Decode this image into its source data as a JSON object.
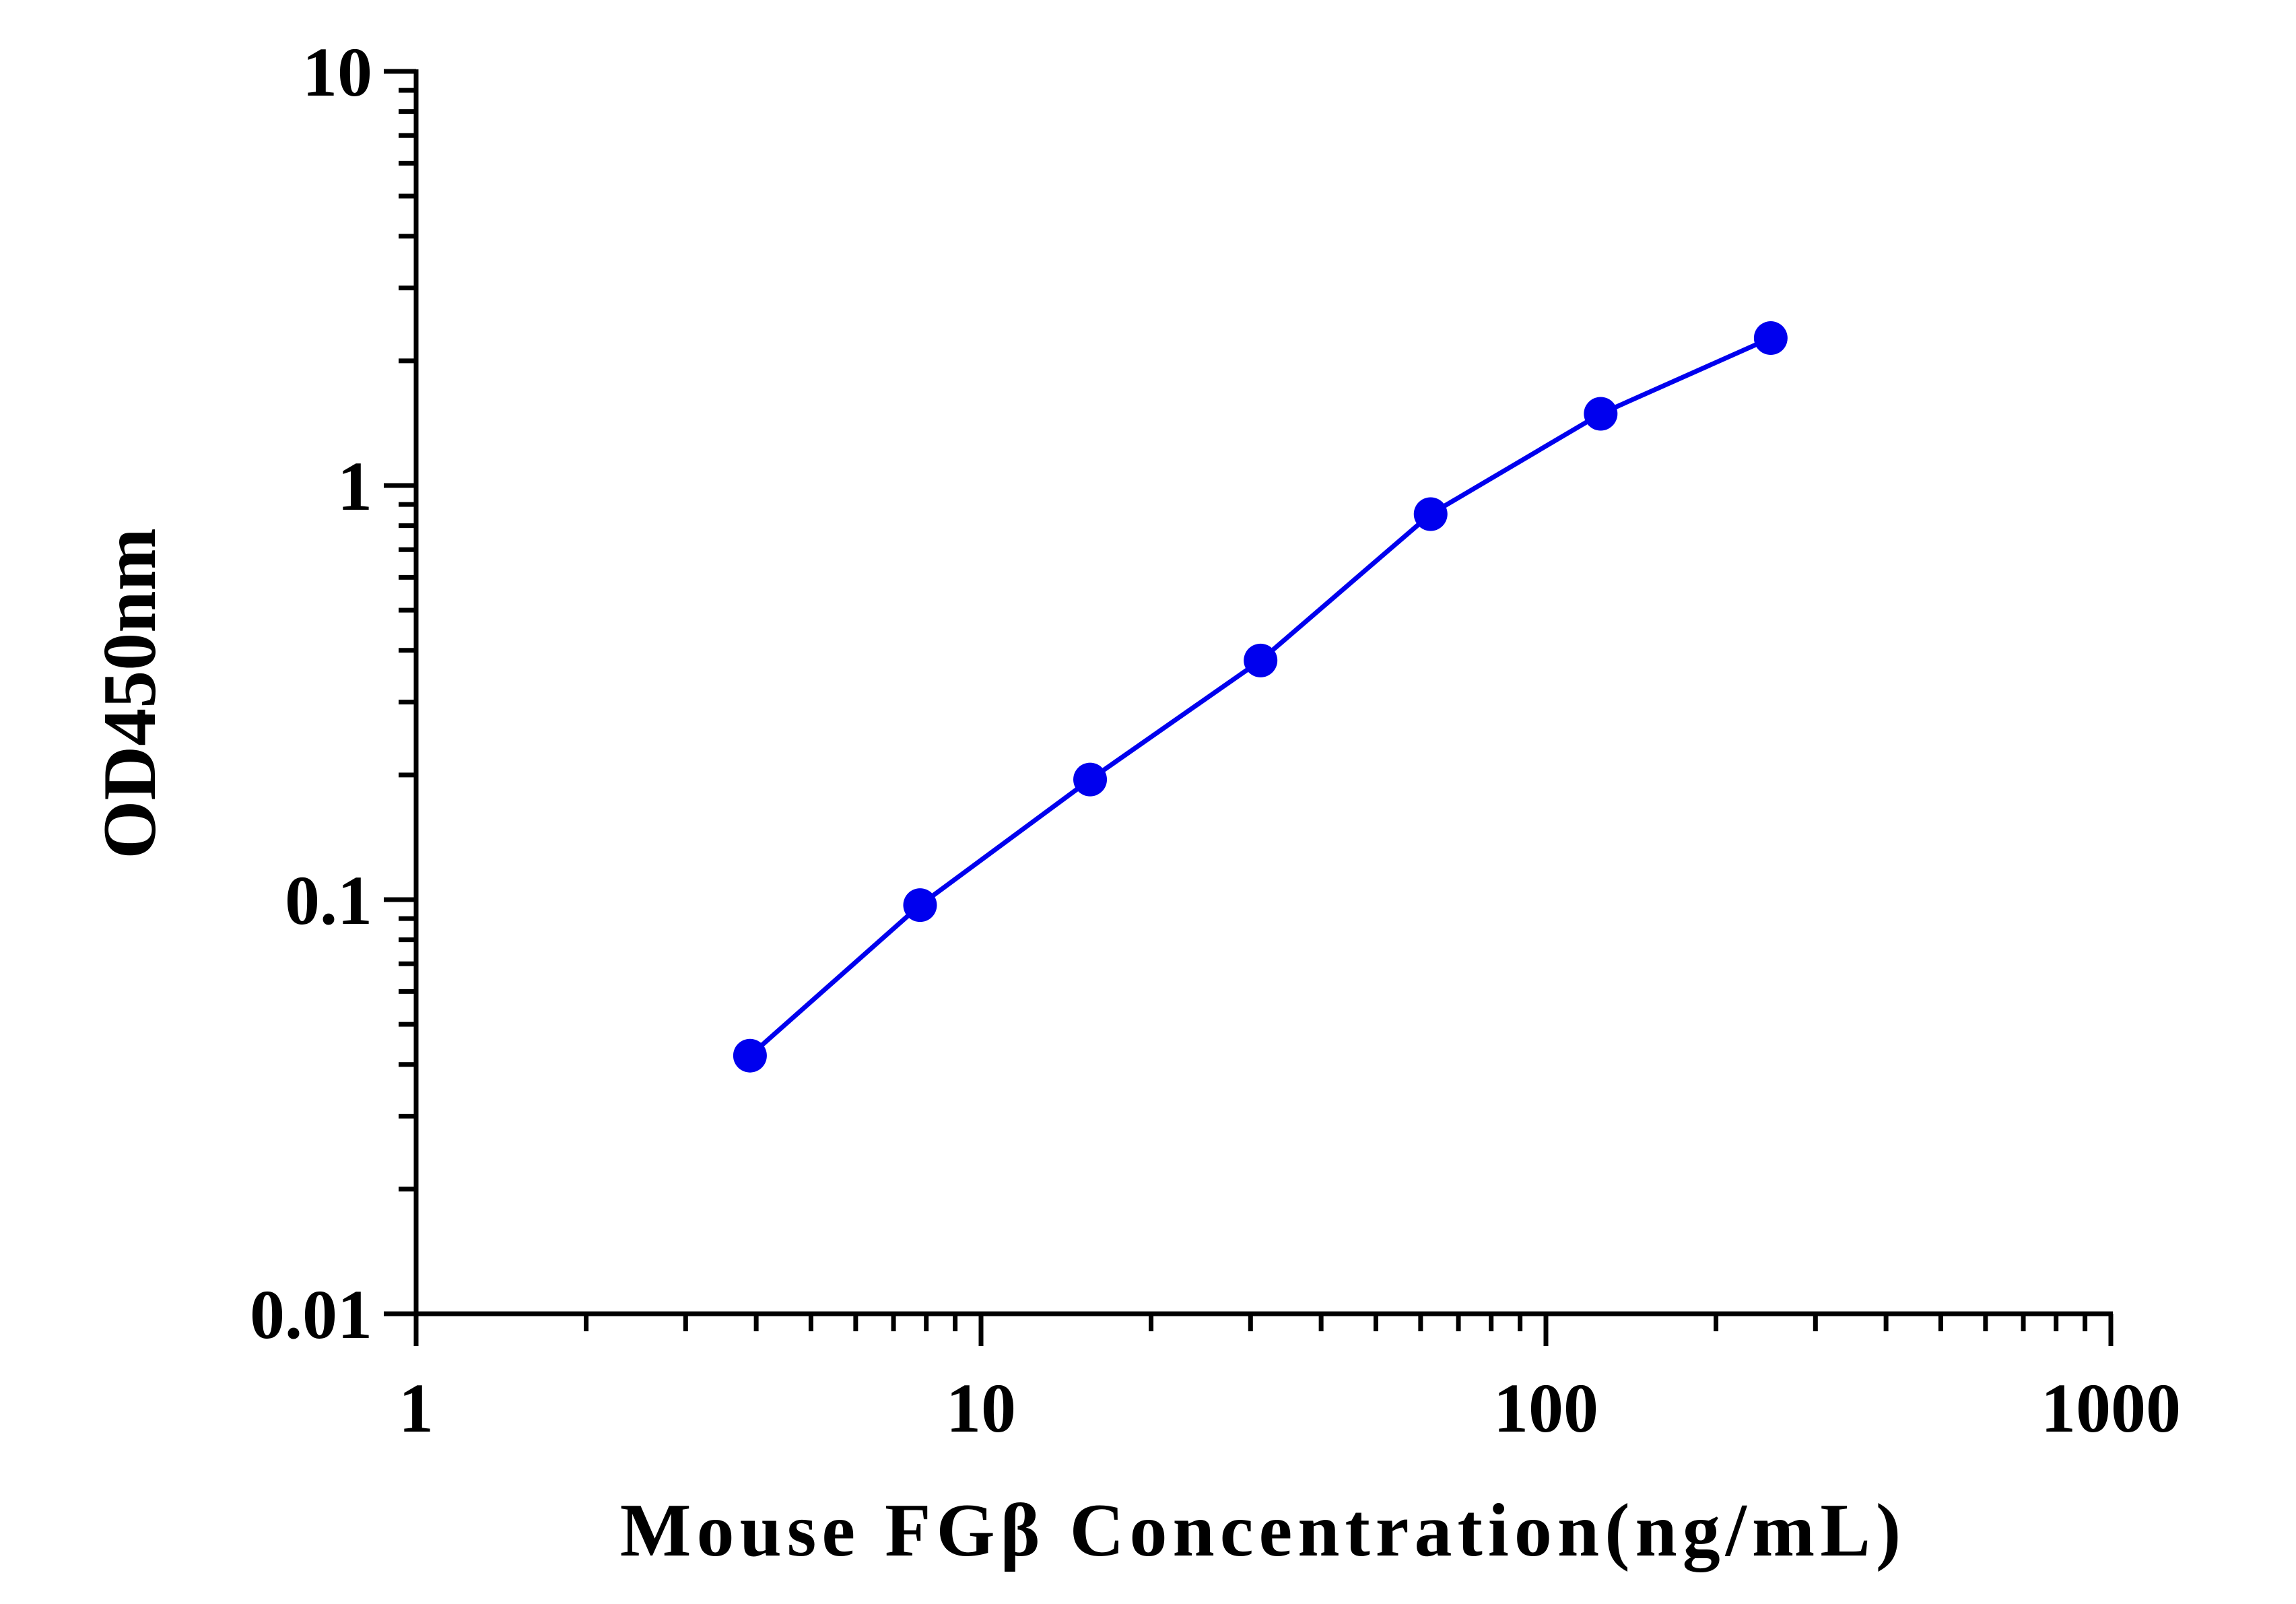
{
  "chart_data": {
    "type": "line",
    "x_label": "Mouse FGβ Concentration(ng/mL)",
    "y_label": "OD450nm",
    "x": [
      3.9,
      7.8,
      15.6,
      31.25,
      62.5,
      125,
      250
    ],
    "series": [
      {
        "color": "#0000ee",
        "values": [
          0.042,
          0.097,
          0.195,
          0.378,
          0.853,
          1.49,
          2.27
        ]
      }
    ],
    "xlim": [
      1,
      1000
    ],
    "xticks": [
      1,
      10,
      100,
      1000
    ],
    "xscale": "log",
    "ylim": [
      0.01,
      10
    ],
    "yticks": [
      0.01,
      0.1,
      1,
      10
    ],
    "yscale": "log",
    "grid": false
  }
}
